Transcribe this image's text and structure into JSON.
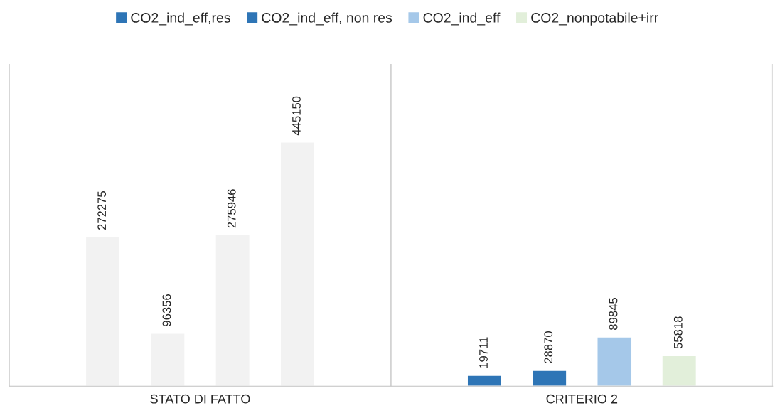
{
  "chart_data": {
    "type": "bar",
    "categories": [
      "STATO DI FATTO",
      "CRITERIO 2"
    ],
    "series": [
      {
        "name": "CO2_ind_eff,res",
        "color": "#2e75b6",
        "colors": [
          "#f2f2f2",
          "#2e75b6"
        ],
        "values": [
          272275,
          19711
        ]
      },
      {
        "name": "CO2_ind_eff, non res",
        "color": "#2e75b6",
        "colors": [
          "#f2f2f2",
          "#2e75b6"
        ],
        "values": [
          96356,
          28870
        ]
      },
      {
        "name": "CO2_ind_eff",
        "color": "#a5c8e9",
        "colors": [
          "#f2f2f2",
          "#a5c8e9"
        ],
        "values": [
          275946,
          89845
        ]
      },
      {
        "name": "CO2_nonpotabile+irr",
        "color": "#e2efda",
        "colors": [
          "#f2f2f2",
          "#e2efda"
        ],
        "values": [
          445150,
          55818
        ]
      }
    ],
    "data_labels": true,
    "legend": "top"
  }
}
